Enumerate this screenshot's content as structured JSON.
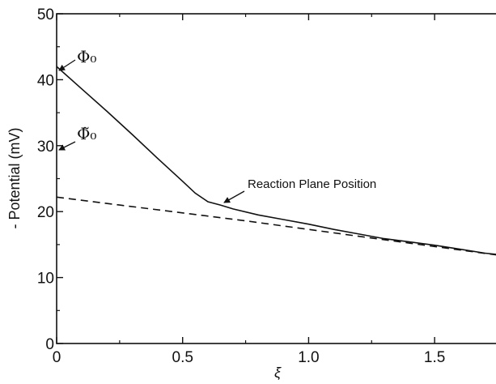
{
  "chart_data": {
    "type": "line",
    "title": "",
    "xlabel": "ξ",
    "ylabel": "- Potential (mV)",
    "xlim": [
      0,
      1.75
    ],
    "ylim": [
      0,
      50
    ],
    "x_ticks": [
      0,
      0.5,
      1.0,
      1.5
    ],
    "x_tick_labels": [
      "0",
      "0.5",
      "1.0",
      "1.5"
    ],
    "y_ticks": [
      0,
      10,
      20,
      30,
      40,
      50
    ],
    "y_tick_labels": [
      "0",
      "10",
      "20",
      "30",
      "40",
      "50"
    ],
    "grid": false,
    "series": [
      {
        "style": "solid",
        "color": "#111111",
        "x": [
          0,
          0.1,
          0.2,
          0.3,
          0.4,
          0.5,
          0.55,
          0.6,
          0.65,
          0.7,
          0.8,
          0.9,
          1.0,
          1.1,
          1.2,
          1.3,
          1.4,
          1.5,
          1.6,
          1.7,
          1.75
        ],
        "y": [
          42,
          38.6,
          35.2,
          31.7,
          28.1,
          24.6,
          22.8,
          21.5,
          21.0,
          20.4,
          19.5,
          18.8,
          18.1,
          17.3,
          16.6,
          15.9,
          15.4,
          14.9,
          14.3,
          13.7,
          13.5
        ]
      },
      {
        "style": "dashed",
        "color": "#111111",
        "x": [
          0,
          0.25,
          0.5,
          0.75,
          1.0,
          1.25,
          1.5,
          1.75
        ],
        "y": [
          22.2,
          21.0,
          19.8,
          18.6,
          17.3,
          16.0,
          14.7,
          13.4
        ]
      }
    ],
    "annotations": [
      {
        "text": "Φ₀",
        "x": 0,
        "y": 42
      },
      {
        "text": "Φ̃₀",
        "x": 0,
        "y": 22.2
      },
      {
        "text": "Reaction Plane Position",
        "x": 0.65,
        "y": 21.0
      }
    ]
  }
}
